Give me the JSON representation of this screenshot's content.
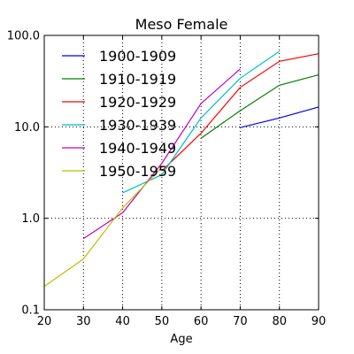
{
  "chart_data": {
    "type": "line",
    "title": "Meso Female",
    "xlabel": "Age",
    "ylabel": "",
    "xlim": [
      20,
      90
    ],
    "ylim": [
      0.1,
      100
    ],
    "yscale": "log",
    "grid": true,
    "legend_position": "top-left",
    "x_ticks": [
      20,
      30,
      40,
      50,
      60,
      70,
      80,
      90
    ],
    "x_tick_labels": [
      "20",
      "30",
      "40",
      "50",
      "60",
      "70",
      "80",
      "90"
    ],
    "y_ticks": [
      0.1,
      1,
      10,
      100
    ],
    "y_tick_labels": [
      "0.1",
      "1.0",
      "10.0",
      "100.0"
    ],
    "series": [
      {
        "name": "1900-1909",
        "color": "#0000ff",
        "x": [
          70,
          80,
          90
        ],
        "y": [
          9.8,
          12.5,
          16.5
        ]
      },
      {
        "name": "1910-1919",
        "color": "#008000",
        "x": [
          60,
          70,
          80,
          90
        ],
        "y": [
          7.5,
          15.0,
          28.5,
          37.0
        ]
      },
      {
        "name": "1920-1929",
        "color": "#ff0000",
        "x": [
          50,
          60,
          70,
          80,
          90
        ],
        "y": [
          3.3,
          8.5,
          27.0,
          52.0,
          63.0
        ]
      },
      {
        "name": "1930-1939",
        "color": "#00bfbf",
        "x": [
          40,
          50,
          60,
          70,
          80
        ],
        "y": [
          1.9,
          3.0,
          12.5,
          34.0,
          67.0
        ]
      },
      {
        "name": "1940-1949",
        "color": "#bf00bf",
        "x": [
          30,
          40,
          50,
          60,
          70
        ],
        "y": [
          0.6,
          1.15,
          4.0,
          18.0,
          43.0
        ]
      },
      {
        "name": "1950-1959",
        "color": "#bfbf00",
        "x": [
          20,
          30,
          40,
          50
        ],
        "y": [
          0.18,
          0.36,
          1.3,
          3.6
        ]
      }
    ]
  }
}
